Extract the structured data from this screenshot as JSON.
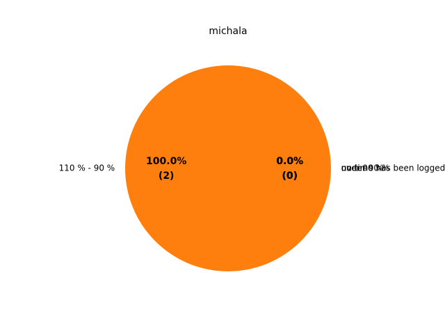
{
  "chart_data": {
    "type": "pie",
    "title": "michala",
    "slices": [
      {
        "label": "110 % - 90 %",
        "value": 2,
        "percent_label": "100.0%",
        "count_label": "(2)",
        "color": "#ff7f0e"
      },
      {
        "label": "over 90 %",
        "value": 0,
        "percent_label": "0.0%",
        "count_label": "(0)",
        "color": "#1f77b4"
      },
      {
        "label": "under 90 %",
        "value": 0,
        "percent_label": "0.0%",
        "count_label": "(0)",
        "color": "#2ca02c"
      },
      {
        "label": "no time has been logged",
        "value": 0,
        "percent_label": "0.0%",
        "count_label": "(0)",
        "color": "#d62728"
      }
    ]
  }
}
